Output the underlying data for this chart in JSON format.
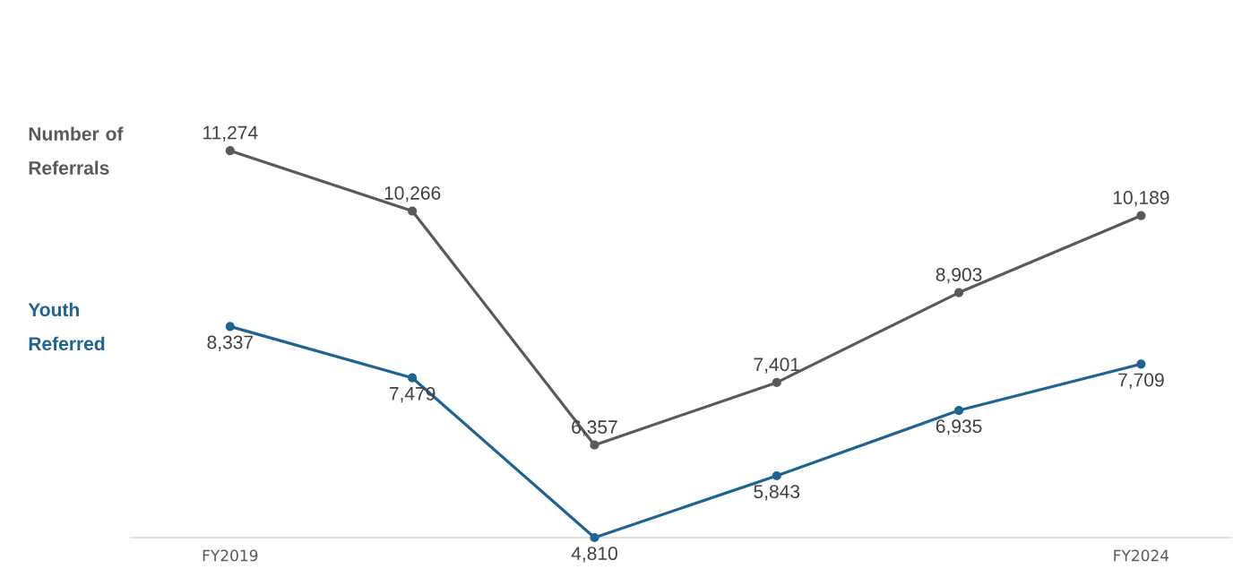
{
  "chart_data": {
    "type": "line",
    "categories": [
      "FY2019",
      null,
      null,
      null,
      null,
      "FY2024"
    ],
    "series": [
      {
        "name": "Number of Referrals",
        "color": "#595959",
        "values": [
          11274,
          10266,
          6357,
          7401,
          8903,
          10189
        ],
        "value_labels": [
          "11,274",
          "10,266",
          "6,357",
          "7,401",
          "8,903",
          "10,189"
        ]
      },
      {
        "name": "Youth Referred",
        "color": "#1f6391",
        "values": [
          8337,
          7479,
          4810,
          5843,
          6935,
          7709
        ],
        "value_labels": [
          "8,337",
          "7,479",
          "4,810",
          "5,843",
          "6,935",
          "7,709"
        ]
      }
    ],
    "marker": "circle",
    "line_style": "solid"
  }
}
